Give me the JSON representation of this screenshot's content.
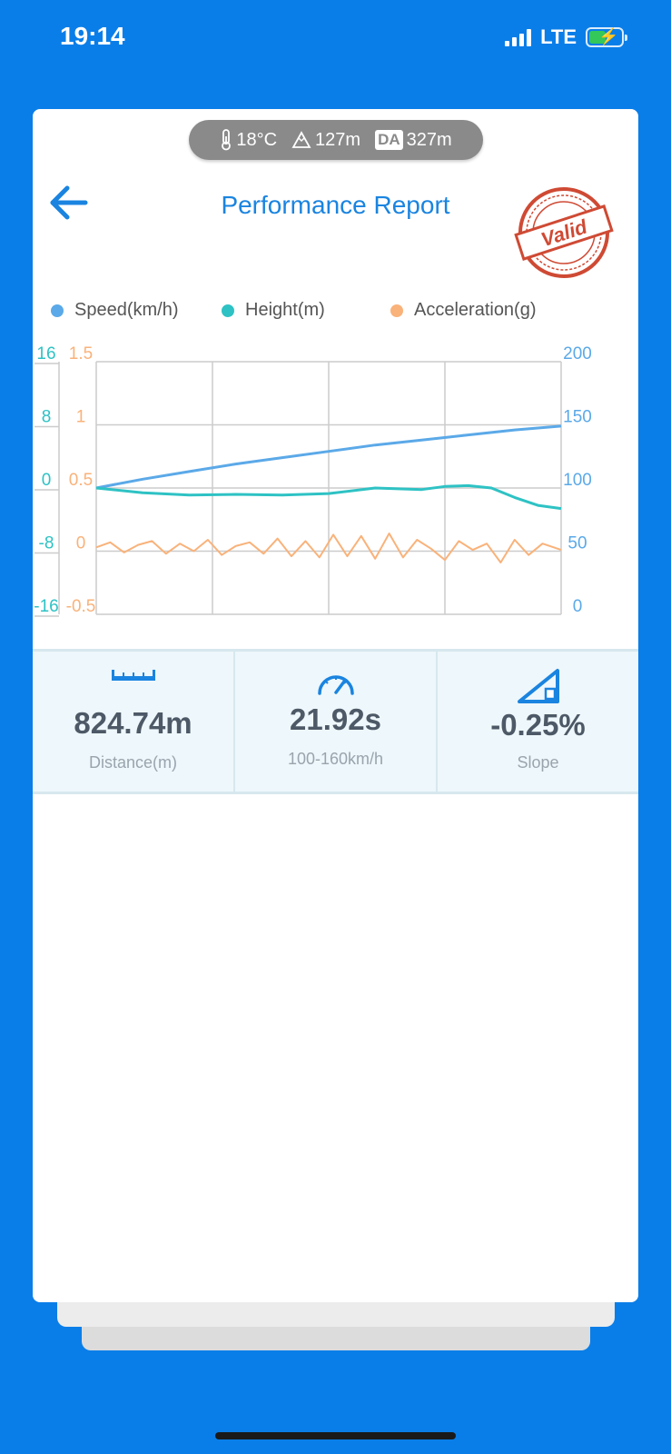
{
  "status_bar": {
    "time": "19:14",
    "network": "LTE",
    "signal_bars": 4,
    "battery_charging": true
  },
  "conditions": {
    "temperature": "18°C",
    "altitude": "127m",
    "density_altitude_badge": "DA",
    "density_altitude": "327m"
  },
  "header": {
    "title": "Performance Report",
    "stamp_text": "Valid",
    "stamp_color": "#cf4a34"
  },
  "colors": {
    "accent": "#1a84e0",
    "speed": "#5ba9e8",
    "height": "#2ec2c4",
    "acceleration": "#f9b27a"
  },
  "chart_data": {
    "type": "line",
    "legend_placement": "top",
    "grid": true,
    "series": [
      {
        "name": "Speed(km/h)",
        "axis": "right",
        "x": [
          0,
          0.1,
          0.2,
          0.3,
          0.4,
          0.5,
          0.6,
          0.7,
          0.8,
          0.9,
          1.0
        ],
        "values": [
          100,
          107,
          113,
          119,
          124,
          129,
          134,
          138,
          142,
          146,
          149
        ]
      },
      {
        "name": "Height(m)",
        "axis": "left",
        "x": [
          0,
          0.1,
          0.2,
          0.3,
          0.4,
          0.5,
          0.6,
          0.7,
          0.75,
          0.8,
          0.85,
          0.9,
          0.95,
          1.0
        ],
        "values": [
          0,
          -0.6,
          -0.9,
          -0.8,
          -0.9,
          -0.7,
          0,
          -0.2,
          0.2,
          0.3,
          0,
          -1.2,
          -2.2,
          -2.6
        ]
      },
      {
        "name": "Acceleration(g)",
        "axis": "left2",
        "x": [
          0,
          0.03,
          0.06,
          0.09,
          0.12,
          0.15,
          0.18,
          0.21,
          0.24,
          0.27,
          0.3,
          0.33,
          0.36,
          0.39,
          0.42,
          0.45,
          0.48,
          0.51,
          0.54,
          0.57,
          0.6,
          0.63,
          0.66,
          0.69,
          0.72,
          0.75,
          0.78,
          0.81,
          0.84,
          0.87,
          0.9,
          0.93,
          0.96,
          1.0
        ],
        "values": [
          0.03,
          0.07,
          -0.01,
          0.05,
          0.08,
          -0.02,
          0.06,
          0.0,
          0.09,
          -0.03,
          0.04,
          0.07,
          -0.02,
          0.1,
          -0.04,
          0.08,
          -0.05,
          0.13,
          -0.04,
          0.12,
          -0.06,
          0.14,
          -0.05,
          0.09,
          0.02,
          -0.07,
          0.08,
          0.01,
          0.06,
          -0.09,
          0.09,
          -0.03,
          0.06,
          0.01
        ]
      }
    ],
    "axes": {
      "left": {
        "ticks": [
          "16",
          "8",
          "0",
          "-8",
          "-16"
        ],
        "range": [
          -16,
          16
        ],
        "color": "#2ec2c4"
      },
      "left2": {
        "ticks": [
          "1.5",
          "1",
          "0.5",
          "0",
          "-0.5"
        ],
        "range": [
          -0.5,
          1.5
        ],
        "color": "#f9b27a"
      },
      "right": {
        "ticks": [
          "200",
          "150",
          "100",
          "50",
          "0"
        ],
        "range": [
          0,
          200
        ],
        "color": "#5ba9e8"
      }
    }
  },
  "stats": [
    {
      "value": "824.74m",
      "label": "Distance(m)",
      "icon": "ruler-icon"
    },
    {
      "value": "21.92s",
      "label": "100-160km/h",
      "icon": "speedometer-icon"
    },
    {
      "value": "-0.25%",
      "label": "Slope",
      "icon": "slope-icon"
    }
  ]
}
